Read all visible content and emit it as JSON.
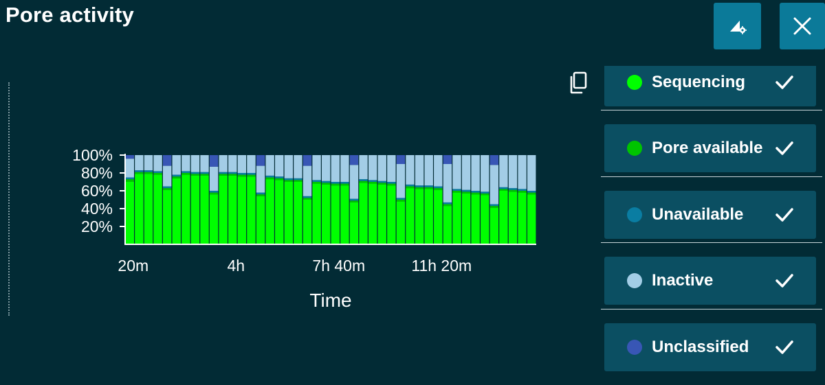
{
  "header": {
    "title": "Pore activity",
    "settings_icon": "chart-settings-icon",
    "close_icon": "close-icon"
  },
  "colors": {
    "background": "#022b35",
    "button": "#0b7a99",
    "legend_bg": "#0b4f62",
    "sequencing": "#00ff00",
    "pore_available": "#00c400",
    "unavailable": "#0a7da2",
    "inactive": "#a3cde6",
    "unclassified": "#3856b5"
  },
  "legend": {
    "copy_icon": "copy-icon",
    "items": [
      {
        "label": "Sequencing",
        "color": "#00ff00",
        "checked": true
      },
      {
        "label": "Pore available",
        "color": "#00c400",
        "checked": true
      },
      {
        "label": "Unavailable",
        "color": "#0a7da2",
        "checked": true
      },
      {
        "label": "Inactive",
        "color": "#a3cde6",
        "checked": true
      },
      {
        "label": "Unclassified",
        "color": "#3856b5",
        "checked": true
      }
    ]
  },
  "chart_data": {
    "type": "bar",
    "stacked": true,
    "title": "",
    "xlabel": "Time",
    "ylabel": "",
    "ylim": [
      0,
      100
    ],
    "y_ticks": [
      "20%",
      "40%",
      "60%",
      "80%",
      "100%"
    ],
    "x_tick_labels": [
      "20m",
      "4h",
      "7h 40m",
      "11h 20m"
    ],
    "x_tick_bar_index": [
      0,
      11,
      22,
      33
    ],
    "series": [
      {
        "name": "Sequencing",
        "color": "#00ff00",
        "values": [
          70,
          79,
          79,
          78,
          61,
          74,
          78,
          77,
          77,
          56,
          77,
          77,
          76,
          76,
          54,
          73,
          72,
          70,
          70,
          50,
          68,
          67,
          66,
          66,
          47,
          69,
          68,
          67,
          66,
          48,
          63,
          62,
          62,
          61,
          43,
          58,
          57,
          56,
          55,
          41,
          60,
          59,
          58,
          56
        ]
      },
      {
        "name": "Pore available",
        "color": "#00c400",
        "values": [
          3,
          2,
          2,
          2,
          2,
          2,
          2,
          2,
          2,
          2,
          2,
          2,
          2,
          2,
          2,
          2,
          2,
          2,
          2,
          2,
          2,
          2,
          2,
          2,
          2,
          2,
          2,
          2,
          2,
          2,
          2,
          2,
          2,
          2,
          2,
          2,
          2,
          2,
          2,
          2,
          2,
          2,
          2,
          2
        ]
      },
      {
        "name": "Unavailable",
        "color": "#0a7da2",
        "values": [
          2,
          2,
          2,
          2,
          2,
          2,
          2,
          2,
          2,
          2,
          2,
          2,
          2,
          2,
          2,
          2,
          2,
          2,
          2,
          2,
          2,
          2,
          2,
          2,
          2,
          2,
          2,
          2,
          2,
          2,
          2,
          2,
          2,
          2,
          2,
          2,
          2,
          2,
          2,
          2,
          2,
          2,
          2,
          2
        ]
      },
      {
        "name": "Inactive",
        "color": "#a3cde6",
        "values": [
          21,
          17,
          17,
          18,
          23,
          22,
          18,
          19,
          19,
          27,
          19,
          19,
          20,
          20,
          30,
          23,
          24,
          26,
          26,
          34,
          28,
          29,
          30,
          30,
          38,
          27,
          28,
          29,
          30,
          38,
          33,
          34,
          34,
          35,
          43,
          38,
          39,
          40,
          41,
          44,
          36,
          37,
          38,
          40
        ]
      },
      {
        "name": "Unclassified",
        "color": "#3856b5",
        "values": [
          4,
          0,
          0,
          0,
          12,
          0,
          0,
          0,
          0,
          13,
          0,
          0,
          0,
          0,
          12,
          0,
          0,
          0,
          0,
          12,
          0,
          0,
          0,
          0,
          11,
          0,
          0,
          0,
          0,
          10,
          0,
          0,
          0,
          0,
          10,
          0,
          0,
          0,
          0,
          11,
          0,
          0,
          0,
          0
        ]
      }
    ]
  }
}
